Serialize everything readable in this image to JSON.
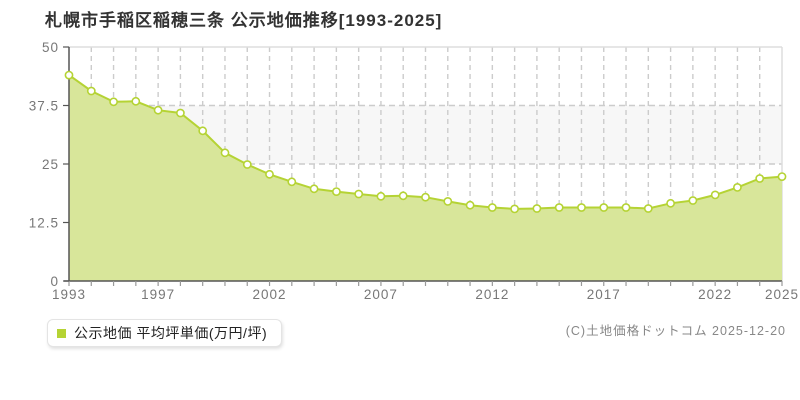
{
  "title": "札幌市手稲区稲穂三条 公示地価推移[1993-2025]",
  "legend": {
    "label": "公示地価 平均坪単価(万円/坪)",
    "marker_color": "#b5d334"
  },
  "copyright": "(C)土地価格ドットコム 2025-12-20",
  "chart_data": {
    "type": "area",
    "title": "札幌市手稲区稲穂三条 公示地価推移[1993-2025]",
    "series_name": "公示地価 平均坪単価(万円/坪)",
    "xlabel": "",
    "ylabel": "万円/坪",
    "x": [
      1993,
      1994,
      1995,
      1996,
      1997,
      1998,
      1999,
      2000,
      2001,
      2002,
      2003,
      2004,
      2005,
      2006,
      2007,
      2008,
      2009,
      2010,
      2011,
      2012,
      2013,
      2014,
      2015,
      2016,
      2017,
      2018,
      2019,
      2020,
      2021,
      2022,
      2023,
      2024,
      2025
    ],
    "values": [
      44.0,
      40.6,
      38.3,
      38.4,
      36.5,
      35.9,
      32.1,
      27.4,
      24.9,
      22.8,
      21.2,
      19.7,
      19.1,
      18.6,
      18.1,
      18.2,
      17.9,
      17.0,
      16.2,
      15.7,
      15.4,
      15.5,
      15.7,
      15.7,
      15.7,
      15.7,
      15.5,
      16.6,
      17.2,
      18.4,
      20.0,
      21.9,
      22.3
    ],
    "ylim": [
      0,
      50
    ],
    "yticks": [
      0,
      12.5,
      25,
      37.5,
      50
    ],
    "ytick_labels": [
      "0",
      "12.5",
      "25",
      "37.5",
      "50"
    ],
    "xtick_labels": [
      1993,
      1997,
      2002,
      2007,
      2012,
      2017,
      2022,
      2025
    ],
    "grid": "dashed",
    "legend_position": "bottom-left",
    "colors": {
      "fill": "#d8e69a",
      "line": "#b5d334",
      "marker_fill": "#ffffff",
      "grid": "#cccccc",
      "band": "#f7f7f7",
      "axis": "#555555",
      "border": "#dddddd",
      "tick_label": "#777777"
    }
  }
}
